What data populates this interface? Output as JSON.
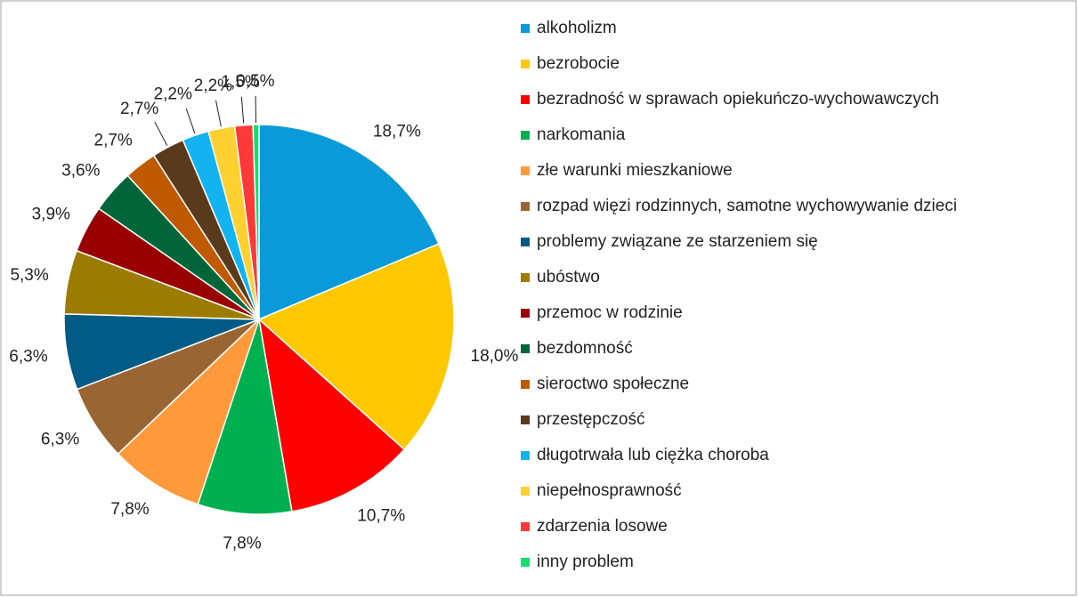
{
  "chart_data": {
    "type": "pie",
    "categories": [
      "alkoholizm",
      "bezrobocie",
      "bezradność w sprawach opiekuńczo-wychowawczych",
      "narkomania",
      "złe warunki mieszkaniowe",
      "rozpad więzi rodzinnych, samotne wychowywanie dzieci",
      "problemy związane ze starzeniem się",
      "ubóstwo",
      "przemoc w rodzinie",
      "bezdomność",
      "sieroctwo społeczne",
      "przestępczość",
      "długotrwała lub ciężka choroba",
      "niepełnosprawność",
      "zdarzenia losowe",
      "inny problem"
    ],
    "values": [
      18.7,
      18.0,
      10.7,
      7.8,
      7.8,
      6.3,
      6.3,
      5.3,
      3.9,
      3.6,
      2.7,
      2.7,
      2.2,
      2.2,
      1.5,
      0.5
    ],
    "value_labels": [
      "18,7%",
      "18,0%",
      "10,7%",
      "7,8%",
      "7,8%",
      "6,3%",
      "6,3%",
      "5,3%",
      "3,9%",
      "3,6%",
      "2,7%",
      "2,7%",
      "2,2%",
      "2,2%",
      "1,5%",
      "0,5%"
    ],
    "colors": [
      "#0a9ad9",
      "#ffc800",
      "#ff0000",
      "#00b050",
      "#ff9a3c",
      "#996633",
      "#005b86",
      "#9c7c00",
      "#990000",
      "#00663a",
      "#c05a00",
      "#5a3a1c",
      "#12b3f0",
      "#ffd030",
      "#ff3838",
      "#10e070"
    ],
    "legend": "right"
  }
}
